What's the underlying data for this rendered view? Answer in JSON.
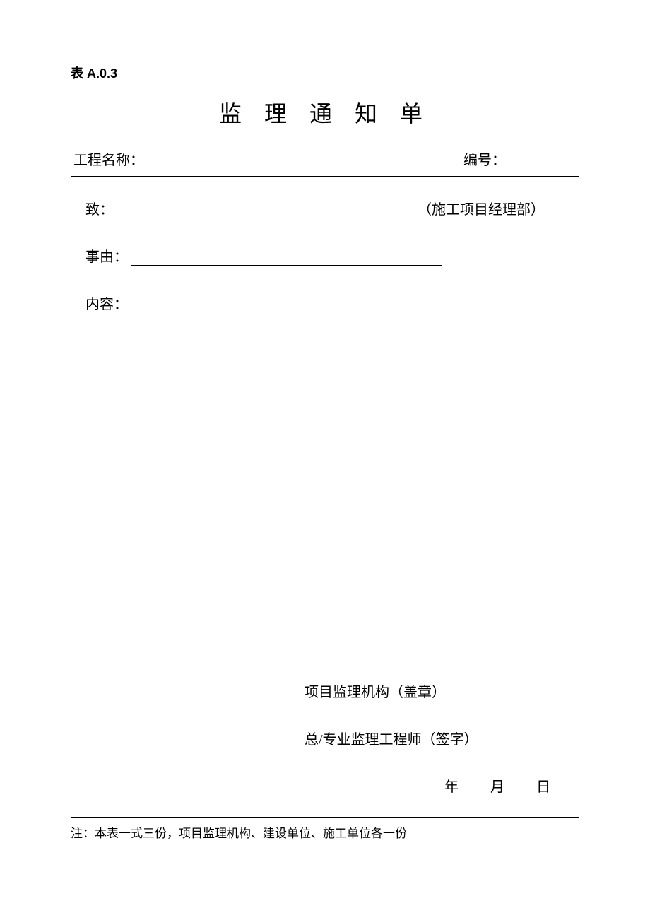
{
  "tableNumber": "表 A.0.3",
  "title": "监 理 通 知 单",
  "header": {
    "projectNameLabel": "工程名称：",
    "numberLabel": "编号："
  },
  "form": {
    "toLabel": "致：",
    "toSuffix": "（施工项目经理部）",
    "reasonLabel": "事由：",
    "contentLabel": "内容："
  },
  "signature": {
    "orgStamp": "项目监理机构（盖章）",
    "engineerSign": "总/专业监理工程师（签字）",
    "year": "年",
    "month": "月",
    "day": "日"
  },
  "note": "注：本表一式三份，项目监理机构、建设单位、施工单位各一份",
  "colors": {
    "text": "#000000",
    "background": "#ffffff",
    "border": "#000000"
  },
  "typography": {
    "titleFontSize": 32,
    "bodyFontSize": 20,
    "noteFontSize": 17,
    "tableNumberFontSize": 18
  }
}
